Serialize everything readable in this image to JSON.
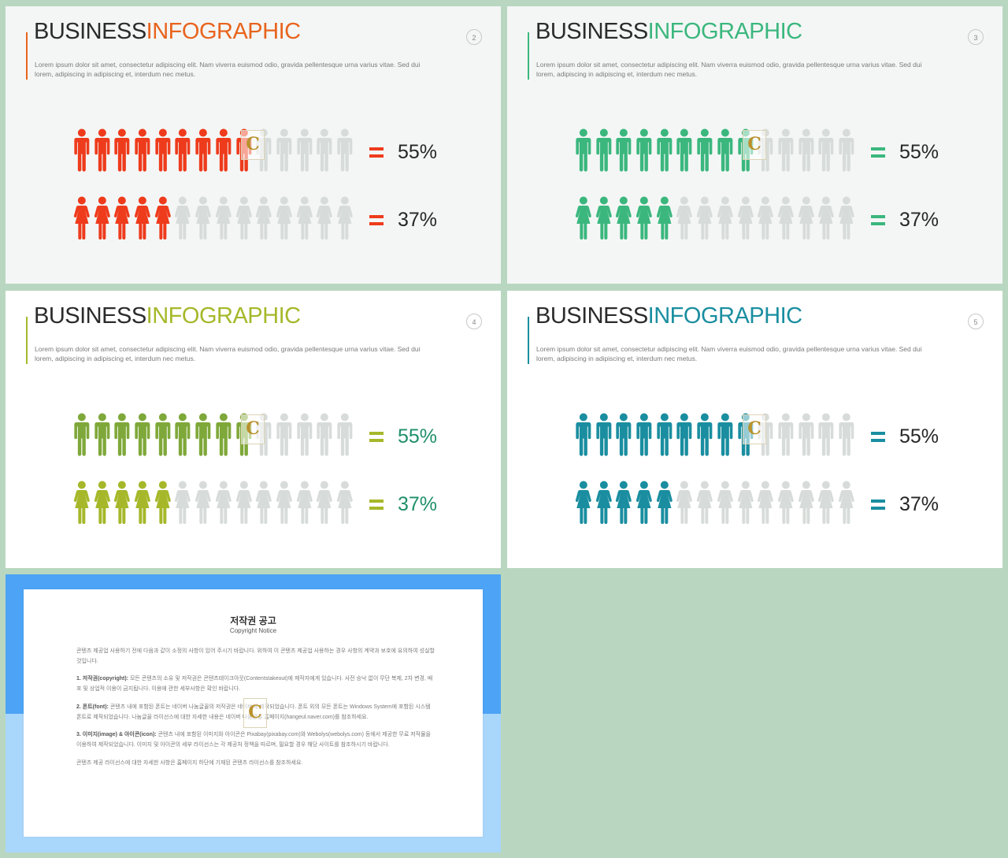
{
  "slides": [
    {
      "title_part1": "BUSINESS",
      "title_part2": "INFOGRAPHIC",
      "description": "Lorem ipsum dolor sit amet, consectetur adipiscing elit. Nam viverra euismod odio, gravida pellentesque urna varius vitae. Sed dui lorem, adipiscing in adipiscing et, interdum nec metus.",
      "page_number": "2",
      "accent_title": "#e8641e",
      "accent_men": "#ee3b1c",
      "accent_women": "#ee3b1c",
      "eq_color": "#ee3b1c",
      "pct_color": "#262626",
      "background": "#f4f6f5",
      "men": {
        "filled": 9,
        "total": 14,
        "percent_label": "55%"
      },
      "women": {
        "filled": 5,
        "total": 14,
        "percent_label": "37%"
      }
    },
    {
      "title_part1": "BUSINESS",
      "title_part2": "INFOGRAPHIC",
      "description": "Lorem ipsum dolor sit amet, consectetur adipiscing elit. Nam viverra euismod odio, gravida pellentesque urna varius vitae. Sed dui lorem, adipiscing in adipiscing et, interdum nec metus.",
      "page_number": "3",
      "accent_title": "#3bb77e",
      "accent_men": "#3bb77e",
      "accent_women": "#3bb77e",
      "eq_color": "#3bb77e",
      "pct_color": "#262626",
      "background": "#f4f6f5",
      "men": {
        "filled": 9,
        "total": 14,
        "percent_label": "55%"
      },
      "women": {
        "filled": 5,
        "total": 14,
        "percent_label": "37%"
      }
    },
    {
      "title_part1": "BUSINESS",
      "title_part2": "INFOGRAPHIC",
      "description": "Lorem ipsum dolor sit amet, consectetur adipiscing elit. Nam viverra euismod odio, gravida pellentesque urna varius vitae. Sed dui lorem, adipiscing in adipiscing et, interdum nec metus.",
      "page_number": "4",
      "accent_title": "#a6b82a",
      "accent_men": "#7fa83a",
      "accent_women": "#a6b82a",
      "eq_color": "#a6b82a",
      "pct_color": "#1f8f6a",
      "background": "#ffffff",
      "men": {
        "filled": 9,
        "total": 14,
        "percent_label": "55%"
      },
      "women": {
        "filled": 5,
        "total": 14,
        "percent_label": "37%"
      }
    },
    {
      "title_part1": "BUSINESS",
      "title_part2": "INFOGRAPHIC",
      "description": "Lorem ipsum dolor sit amet, consectetur adipiscing elit. Nam viverra euismod odio, gravida pellentesque urna varius vitae. Sed dui lorem, adipiscing in adipiscing et, interdum nec metus.",
      "page_number": "5",
      "accent_title": "#1a8ea0",
      "accent_men": "#1a8ea0",
      "accent_women": "#1a8ea0",
      "eq_color": "#1a8ea0",
      "pct_color": "#262626",
      "background": "#ffffff",
      "men": {
        "filled": 9,
        "total": 14,
        "percent_label": "55%"
      },
      "women": {
        "filled": 5,
        "total": 14,
        "percent_label": "37%"
      }
    }
  ],
  "colors": {
    "inactive_figure": "#d7dcda",
    "page_background": "#b9d7c0",
    "notice_top": "#4da3f5",
    "notice_bottom": "#a9d6fb"
  },
  "watermark_letter": "C",
  "notice": {
    "title": "저작권 공고",
    "subtitle": "Copyright Notice",
    "paragraphs": [
      {
        "heading": "",
        "text": "콘텐츠 제공업 사용하기 전에 다음과 같이 소정의 사항이 있어 주시기 바랍니다. 위하여 이 콘텐츠 제공업 사용하는 경우 사항의 계약과 보호에 유의하여 성실할 것입니다."
      },
      {
        "heading": "1. 저작권(copyright):",
        "text": "모든 콘텐츠의 소유 및 저작권은 콘텐츠테이크아웃(Contentstakeout)에 제작자에게 있습니다. 사전 승낙 없이 무단 복제, 2차 변경, 배포 및 상업적 이용이 금지됩니다. 이용에 관한 세부사항은 확인 바랍니다."
      },
      {
        "heading": "2. 폰트(font):",
        "text": "콘텐츠 내에 포함된 폰트는 네이버 나눔글꼴의 저작권은 네이버에 제작되었습니다. 폰트 외의 모든 폰트는 Windows System에 포함된 시스템 폰트로 제작되었습니다. 나눔글꼴 라이선스에 대한 자세한 내용은 네이버 나눔글꼴 홈페이지(hangeul.naver.com)를 참조하세요."
      },
      {
        "heading": "3. 이미지(image) & 아이콘(icon):",
        "text": "콘텐츠 내에 포함된 이미지와 아이콘은 Pixabay(pixabay.com)와 Webolys(webolys.com) 등에서 제공한 무료 저작물을 이용하여 제작되었습니다. 이미지 및 아이콘의 세부 라이선스는 각 제공처 정책을 따르며, 필요할 경우 해당 사이트를 참조하시기 바랍니다."
      },
      {
        "heading": "",
        "text": "콘텐츠 제공 라이선스에 대한 자세한 사항은 홈페이지 하단에 기재된 콘텐츠 라이선스를 참조하세요."
      }
    ]
  }
}
